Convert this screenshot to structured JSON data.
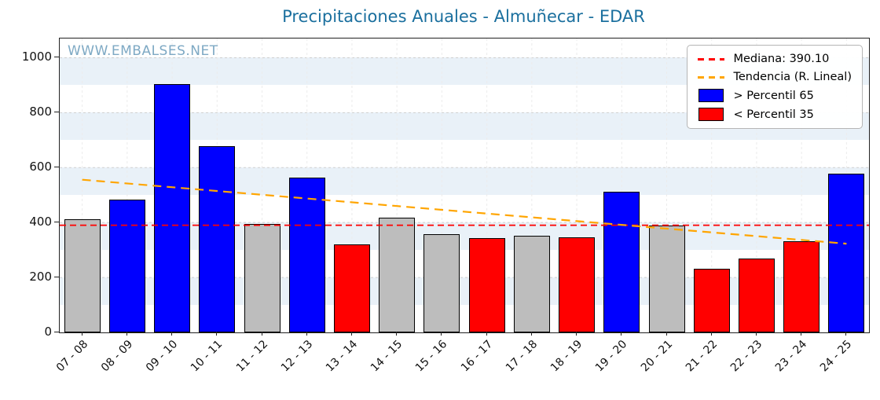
{
  "chart_data": {
    "type": "bar",
    "title": "Precipitaciones Anuales - Almuñecar - EDAR",
    "watermark": "WWW.EMBALSES.NET",
    "categories": [
      "07 - 08",
      "08 - 09",
      "09 - 10",
      "10 - 11",
      "11 - 12",
      "12 - 13",
      "13 - 14",
      "14 - 15",
      "15 - 16",
      "16 - 17",
      "17 - 18",
      "18 - 19",
      "19 - 20",
      "20 - 21",
      "21 - 22",
      "22 - 23",
      "23 - 24",
      "24 - 25"
    ],
    "values": [
      413,
      483,
      905,
      678,
      394,
      565,
      320,
      418,
      358,
      343,
      352,
      346,
      513,
      389,
      232,
      269,
      331,
      577
    ],
    "classes": [
      "mid",
      "above",
      "above",
      "above",
      "mid",
      "above",
      "below",
      "mid",
      "mid",
      "below",
      "mid",
      "below",
      "above",
      "mid",
      "below",
      "below",
      "below",
      "above"
    ],
    "colors": {
      "above": "#0000ff",
      "below": "#ff0000",
      "mid": "#bdbdbd"
    },
    "median": 390.1,
    "median_color": "#ff0000",
    "trend": {
      "start": 556,
      "end": 323
    },
    "trend_color": "#ffa500",
    "legend": [
      {
        "icon": "dashed-line",
        "color": "#ff0000",
        "label": "Mediana: 390.10"
      },
      {
        "icon": "dashed-line",
        "color": "#ffa500",
        "label": "Tendencia (R. Lineal)"
      },
      {
        "icon": "patch",
        "color": "#0000ff",
        "label": "> Percentil 65"
      },
      {
        "icon": "patch",
        "color": "#ff0000",
        "label": "< Percentil 35"
      }
    ],
    "ylim": [
      0,
      1070
    ],
    "yticks": [
      0,
      200,
      400,
      600,
      800,
      1000
    ],
    "xlabel": "",
    "ylabel": ""
  }
}
